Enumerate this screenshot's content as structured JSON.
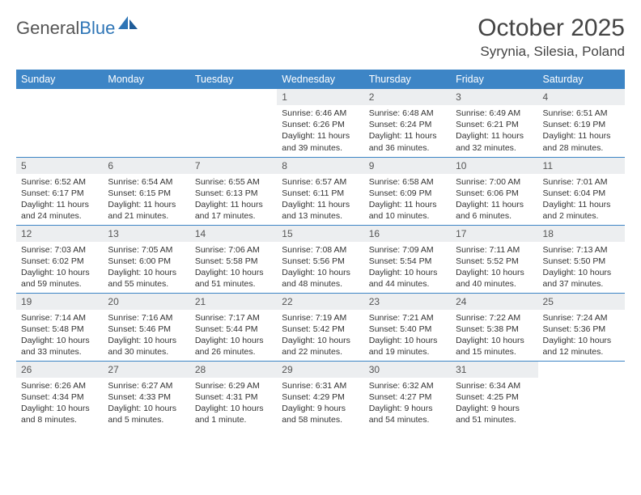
{
  "logo": {
    "text_gray": "General",
    "text_blue": "Blue"
  },
  "title": "October 2025",
  "location": "Syrynia, Silesia, Poland",
  "colors": {
    "header_bg": "#3d85c6",
    "header_text": "#ffffff",
    "daynum_bg": "#eceef0",
    "row_divider": "#3d85c6",
    "body_text": "#333333",
    "logo_gray": "#555555",
    "logo_blue": "#2e75b6"
  },
  "typography": {
    "title_fontsize": 30,
    "location_fontsize": 17,
    "header_fontsize": 12.5,
    "daynum_fontsize": 12,
    "cell_fontsize": 10.5
  },
  "day_headers": [
    "Sunday",
    "Monday",
    "Tuesday",
    "Wednesday",
    "Thursday",
    "Friday",
    "Saturday"
  ],
  "weeks": [
    [
      null,
      null,
      null,
      {
        "n": "1",
        "sr": "6:46 AM",
        "ss": "6:26 PM",
        "dl": "11 hours and 39 minutes."
      },
      {
        "n": "2",
        "sr": "6:48 AM",
        "ss": "6:24 PM",
        "dl": "11 hours and 36 minutes."
      },
      {
        "n": "3",
        "sr": "6:49 AM",
        "ss": "6:21 PM",
        "dl": "11 hours and 32 minutes."
      },
      {
        "n": "4",
        "sr": "6:51 AM",
        "ss": "6:19 PM",
        "dl": "11 hours and 28 minutes."
      }
    ],
    [
      {
        "n": "5",
        "sr": "6:52 AM",
        "ss": "6:17 PM",
        "dl": "11 hours and 24 minutes."
      },
      {
        "n": "6",
        "sr": "6:54 AM",
        "ss": "6:15 PM",
        "dl": "11 hours and 21 minutes."
      },
      {
        "n": "7",
        "sr": "6:55 AM",
        "ss": "6:13 PM",
        "dl": "11 hours and 17 minutes."
      },
      {
        "n": "8",
        "sr": "6:57 AM",
        "ss": "6:11 PM",
        "dl": "11 hours and 13 minutes."
      },
      {
        "n": "9",
        "sr": "6:58 AM",
        "ss": "6:09 PM",
        "dl": "11 hours and 10 minutes."
      },
      {
        "n": "10",
        "sr": "7:00 AM",
        "ss": "6:06 PM",
        "dl": "11 hours and 6 minutes."
      },
      {
        "n": "11",
        "sr": "7:01 AM",
        "ss": "6:04 PM",
        "dl": "11 hours and 2 minutes."
      }
    ],
    [
      {
        "n": "12",
        "sr": "7:03 AM",
        "ss": "6:02 PM",
        "dl": "10 hours and 59 minutes."
      },
      {
        "n": "13",
        "sr": "7:05 AM",
        "ss": "6:00 PM",
        "dl": "10 hours and 55 minutes."
      },
      {
        "n": "14",
        "sr": "7:06 AM",
        "ss": "5:58 PM",
        "dl": "10 hours and 51 minutes."
      },
      {
        "n": "15",
        "sr": "7:08 AM",
        "ss": "5:56 PM",
        "dl": "10 hours and 48 minutes."
      },
      {
        "n": "16",
        "sr": "7:09 AM",
        "ss": "5:54 PM",
        "dl": "10 hours and 44 minutes."
      },
      {
        "n": "17",
        "sr": "7:11 AM",
        "ss": "5:52 PM",
        "dl": "10 hours and 40 minutes."
      },
      {
        "n": "18",
        "sr": "7:13 AM",
        "ss": "5:50 PM",
        "dl": "10 hours and 37 minutes."
      }
    ],
    [
      {
        "n": "19",
        "sr": "7:14 AM",
        "ss": "5:48 PM",
        "dl": "10 hours and 33 minutes."
      },
      {
        "n": "20",
        "sr": "7:16 AM",
        "ss": "5:46 PM",
        "dl": "10 hours and 30 minutes."
      },
      {
        "n": "21",
        "sr": "7:17 AM",
        "ss": "5:44 PM",
        "dl": "10 hours and 26 minutes."
      },
      {
        "n": "22",
        "sr": "7:19 AM",
        "ss": "5:42 PM",
        "dl": "10 hours and 22 minutes."
      },
      {
        "n": "23",
        "sr": "7:21 AM",
        "ss": "5:40 PM",
        "dl": "10 hours and 19 minutes."
      },
      {
        "n": "24",
        "sr": "7:22 AM",
        "ss": "5:38 PM",
        "dl": "10 hours and 15 minutes."
      },
      {
        "n": "25",
        "sr": "7:24 AM",
        "ss": "5:36 PM",
        "dl": "10 hours and 12 minutes."
      }
    ],
    [
      {
        "n": "26",
        "sr": "6:26 AM",
        "ss": "4:34 PM",
        "dl": "10 hours and 8 minutes."
      },
      {
        "n": "27",
        "sr": "6:27 AM",
        "ss": "4:33 PM",
        "dl": "10 hours and 5 minutes."
      },
      {
        "n": "28",
        "sr": "6:29 AM",
        "ss": "4:31 PM",
        "dl": "10 hours and 1 minute."
      },
      {
        "n": "29",
        "sr": "6:31 AM",
        "ss": "4:29 PM",
        "dl": "9 hours and 58 minutes."
      },
      {
        "n": "30",
        "sr": "6:32 AM",
        "ss": "4:27 PM",
        "dl": "9 hours and 54 minutes."
      },
      {
        "n": "31",
        "sr": "6:34 AM",
        "ss": "4:25 PM",
        "dl": "9 hours and 51 minutes."
      },
      null
    ]
  ],
  "labels": {
    "sunrise": "Sunrise: ",
    "sunset": "Sunset: ",
    "daylight": "Daylight: "
  }
}
